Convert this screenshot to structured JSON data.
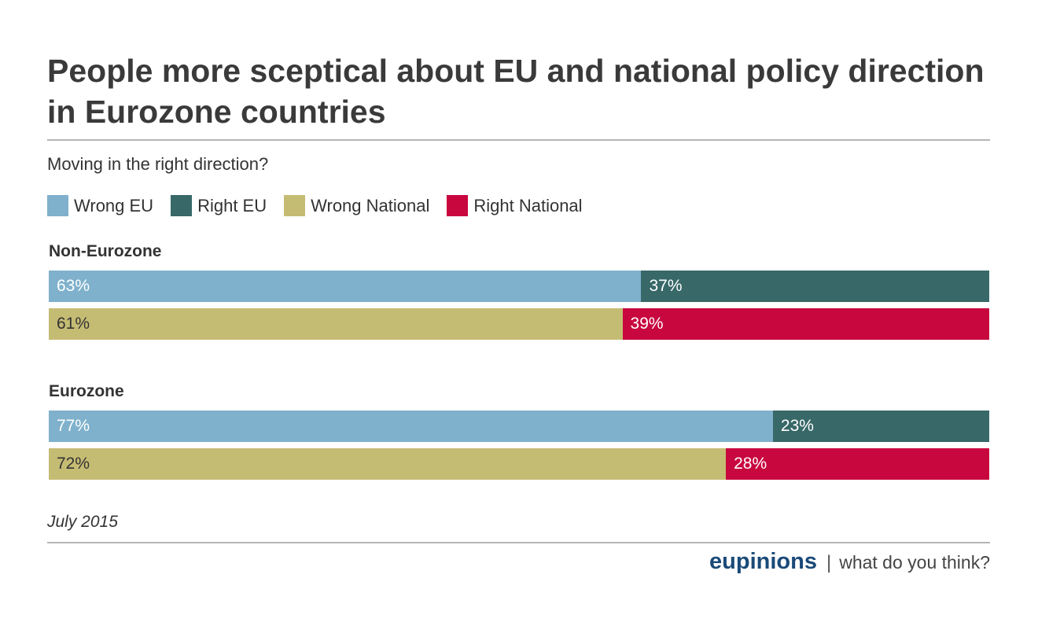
{
  "title": "People more sceptical about EU and national policy direction in Eurozone countries",
  "subtitle": "Moving in the right direction?",
  "date": "July 2015",
  "footer": {
    "brand": "eupinions",
    "separator": "|",
    "tagline": "what do you think?"
  },
  "colors": {
    "wrong_eu": "#7fb1cc",
    "right_eu": "#386868",
    "wrong_national": "#c5bc74",
    "right_national": "#c8073f"
  },
  "chart_data": {
    "type": "bar",
    "orientation": "horizontal-stacked-100",
    "legend": [
      {
        "key": "wrong_eu",
        "label": "Wrong EU"
      },
      {
        "key": "right_eu",
        "label": "Right EU"
      },
      {
        "key": "wrong_national",
        "label": "Wrong National"
      },
      {
        "key": "right_national",
        "label": "Right National"
      }
    ],
    "groups": [
      {
        "name": "Non-Eurozone",
        "rows": [
          {
            "segments": [
              {
                "key": "wrong_eu",
                "value": 63,
                "label": "63%"
              },
              {
                "key": "right_eu",
                "value": 37,
                "label": "37%"
              }
            ]
          },
          {
            "segments": [
              {
                "key": "wrong_national",
                "value": 61,
                "label": "61%"
              },
              {
                "key": "right_national",
                "value": 39,
                "label": "39%"
              }
            ]
          }
        ]
      },
      {
        "name": "Eurozone",
        "rows": [
          {
            "segments": [
              {
                "key": "wrong_eu",
                "value": 77,
                "label": "77%"
              },
              {
                "key": "right_eu",
                "value": 23,
                "label": "23%"
              }
            ]
          },
          {
            "segments": [
              {
                "key": "wrong_national",
                "value": 72,
                "label": "72%"
              },
              {
                "key": "right_national",
                "value": 28,
                "label": "28%"
              }
            ]
          }
        ]
      }
    ]
  }
}
